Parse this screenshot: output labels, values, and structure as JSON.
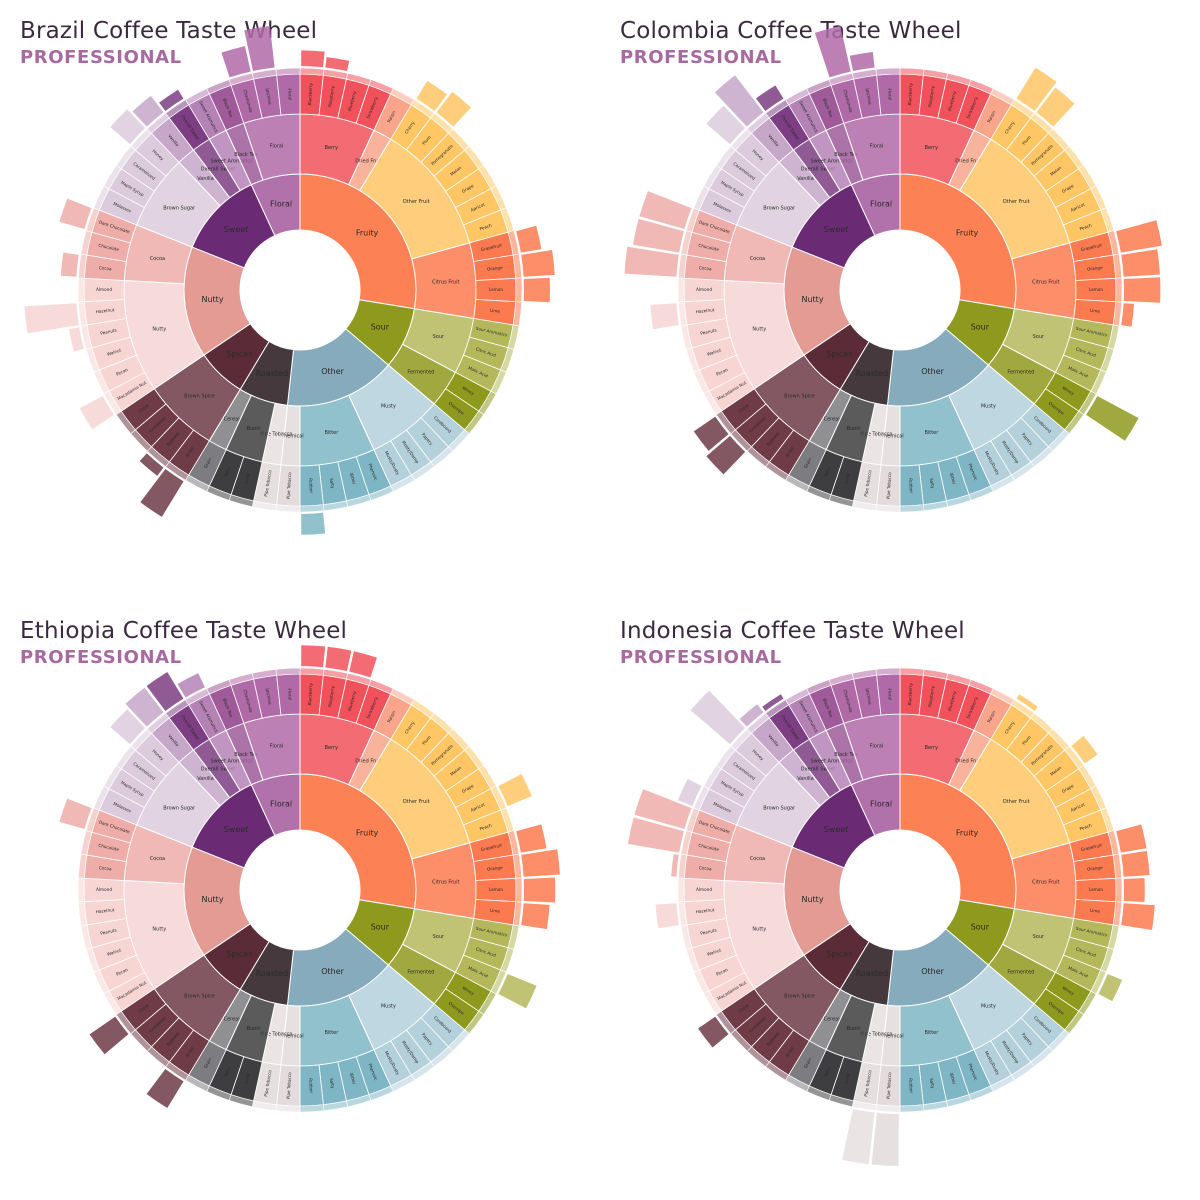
{
  "colors": {
    "title": "#3b2a3f",
    "subtitle": "#a8699f",
    "background": "#ffffff"
  },
  "categories": [
    {
      "name": "Fruity",
      "color": "#fc8256",
      "children": [
        {
          "name": "Berry",
          "color": "#f1515a",
          "children": [
            "Blackberry",
            "Raspberry",
            "Blueberry",
            "Strawberry"
          ]
        },
        {
          "name": "Dried Fruit",
          "color": "#f8a58b",
          "children": [
            "Raisin"
          ]
        },
        {
          "name": "Other Fruit",
          "color": "#fec665",
          "children": [
            "Cherry",
            "Plum",
            "Pomegranate",
            "Melon",
            "Grape",
            "Apricot",
            "Peach"
          ]
        },
        {
          "name": "Citrus Fruit",
          "color": "#fb7a4f",
          "children": [
            "Grapefruit",
            "Orange",
            "Lemon",
            "Lime"
          ]
        }
      ]
    },
    {
      "name": "Sour",
      "color": "#8e9a1d",
      "children": [
        {
          "name": "Sour",
          "color": "#b5b85a",
          "children": [
            "Sour Aromatics",
            "Citric Acid",
            "Malic Acid"
          ]
        },
        {
          "name": "Fermented",
          "color": "#8e9a1d",
          "children": [
            "Winey",
            "Overripe"
          ]
        }
      ]
    },
    {
      "name": "Other",
      "color": "#86abbc",
      "children": [
        {
          "name": "Musty",
          "color": "#b4d0da",
          "children": [
            "Cardboard",
            "Papery",
            "Moldy/Damp",
            "Musty/Dusty"
          ]
        },
        {
          "name": "Bitter",
          "color": "#7fb6c5",
          "children": [
            "Phenolic",
            "Bitter",
            "Salty",
            "Rubber"
          ]
        },
        {
          "name": "Chemical",
          "color": "#e3dbdc",
          "children": [
            "Pipe Tobacco"
          ]
        }
      ]
    },
    {
      "name": "Roasted",
      "color": "#45393d",
      "children": [
        {
          "name": "Pipe Tobacco",
          "color": "#e6dfe0",
          "children": [
            "Pipe Tobacco"
          ]
        },
        {
          "name": "Burnt",
          "color": "#3e3e40",
          "children": [
            "Acrid",
            "Ashy"
          ]
        },
        {
          "name": "Cereal",
          "color": "#7d7c80",
          "children": [
            "Grain"
          ]
        }
      ]
    },
    {
      "name": "Spices",
      "color": "#5b2c38",
      "children": [
        {
          "name": "Brown Spice",
          "color": "#6f3b47",
          "children": [
            "Anise",
            "Nutmeg",
            "Cinnamon",
            "Clove"
          ]
        }
      ]
    },
    {
      "name": "Nutty",
      "color": "#e39b93",
      "children": [
        {
          "name": "Nutty",
          "color": "#f6d5d3",
          "children": [
            "Macadamia Nut",
            "Pecan",
            "Walnut",
            "Peanuts",
            "Hazelnut",
            "Almond"
          ]
        },
        {
          "name": "Cocoa",
          "color": "#eeada8",
          "children": [
            "Cocoa",
            "Chocolate",
            "Dark Chocolate"
          ]
        }
      ]
    },
    {
      "name": "Sweet",
      "color": "#6a2b74",
      "children": [
        {
          "name": "Brown Sugar",
          "color": "#dccbdd",
          "children": [
            "Molasses",
            "Maple Syrup",
            "Caramelized",
            "Honey"
          ]
        },
        {
          "name": "Vanilla",
          "color": "#c6a7c9",
          "children": [
            "Vanilla"
          ]
        },
        {
          "name": "Overall Sweet",
          "color": "#7d3e83",
          "children": [
            "Overall Sweet"
          ]
        },
        {
          "name": "Sweet Aromatics",
          "color": "#b582b6",
          "children": [
            "Sweet Aromatics"
          ]
        }
      ]
    },
    {
      "name": "Floral",
      "color": "#b172ac",
      "children": [
        {
          "name": "Black Tea",
          "color": "#9e5a99",
          "children": [
            "Black Tea"
          ]
        },
        {
          "name": "Floral",
          "color": "#b06aa7",
          "children": [
            "Chamomile",
            "Jasmine",
            "Floral"
          ]
        }
      ]
    }
  ],
  "panels": [
    {
      "title": "Brazil Coffee Taste Wheel",
      "subtitle": "PROFESSIONAL",
      "intensity": {
        "Blackberry": 0.3,
        "Raspberry": 0.2,
        "Grapefruit": 0.4,
        "Orange": 0.6,
        "Lemon": 0.5,
        "Cocoa": 0.3,
        "Dark Chocolate": 0.5,
        "Hazelnut": 1.0,
        "Peanuts": 0.2,
        "Macadamia Nut": 0.5,
        "Anise": 0.8,
        "Nutmeg": 0.2,
        "Rubber": 0.4,
        "Honey": 0.5,
        "Vanilla": 0.4,
        "Overall Sweet": 0.2,
        "Chamomile": 0.5,
        "Jasmine": 0.8,
        "Cherry": 0.4,
        "Plum": 0.5
      }
    },
    {
      "title": "Colombia Coffee Taste Wheel",
      "subtitle": "PROFESSIONAL",
      "intensity": {
        "Cherry": 0.7,
        "Plum": 0.6,
        "Grapefruit": 0.8,
        "Orange": 0.7,
        "Lemon": 0.7,
        "Lime": 0.2,
        "Winey": 0.9,
        "Cocoa": 1.0,
        "Chocolate": 0.9,
        "Dark Chocolate": 0.9,
        "Hazelnut": 0.5,
        "Clove": 0.5,
        "Cinnamon": 0.6,
        "Honey": 0.6,
        "Vanilla": 0.9,
        "Overall Sweet": 0.3,
        "Chamomile": 0.9,
        "Jasmine": 0.3
      }
    },
    {
      "title": "Ethiopia Coffee Taste Wheel",
      "subtitle": "PROFESSIONAL",
      "intensity": {
        "Blackberry": 0.4,
        "Raspberry": 0.4,
        "Blueberry": 0.4,
        "Apricot": 0.5,
        "Grapefruit": 0.5,
        "Orange": 0.7,
        "Lemon": 0.6,
        "Lime": 0.5,
        "Malic Acid": 0.6,
        "Dark Chocolate": 0.5,
        "Clove": 0.6,
        "Anise": 0.6,
        "Honey": 0.5,
        "Vanilla": 0.6,
        "Overall Sweet": 0.6,
        "Sweet Aromatics": 0.3
      }
    },
    {
      "title": "Indonesia Coffee Taste Wheel",
      "subtitle": "PROFESSIONAL",
      "intensity": {
        "Cherry": 0.1,
        "Melon": 0.3,
        "Grapefruit": 0.5,
        "Orange": 0.5,
        "Lemon": 0.4,
        "Lime": 0.6,
        "Malic Acid": 0.3,
        "Cocoa": 0.1,
        "Chocolate": 1.0,
        "Dark Chocolate": 1.0,
        "Molasses": 0.3,
        "Hazelnut": 0.4,
        "Clove": 0.4,
        "Pipe Tobacco": 1.0,
        "Honey": 1.0,
        "Vanilla": 0.2,
        "Overall Sweet": 0.1
      }
    }
  ]
}
